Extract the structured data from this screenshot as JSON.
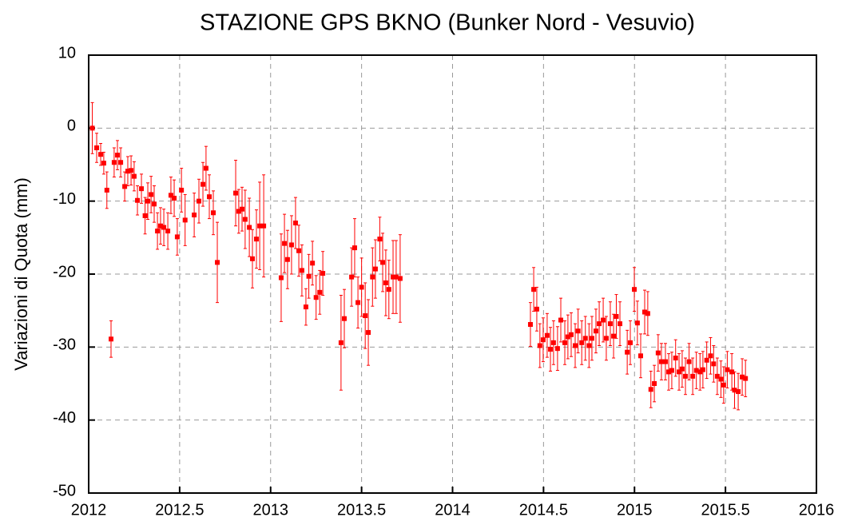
{
  "chart_data": {
    "type": "errorbar",
    "title": "STAZIONE GPS BKNO (Bunker Nord - Vesuvio)",
    "y_label": "Variazioni di Quota (mm)",
    "color": "#ff0000",
    "grid": true,
    "xlim": [
      2012,
      2016
    ],
    "xticks": [
      2012,
      2012.5,
      2013,
      2013.5,
      2014,
      2014.5,
      2015,
      2015.5,
      2016
    ],
    "ylim": [
      -50,
      10
    ],
    "yticks": [
      10,
      0,
      -10,
      -20,
      -30,
      -40,
      -50
    ],
    "x": [
      2012.02,
      2012.044,
      2012.066,
      2012.083,
      2012.1,
      2012.123,
      2012.14,
      2012.158,
      2012.176,
      2012.198,
      2012.215,
      2012.233,
      2012.25,
      2012.268,
      2012.29,
      2012.31,
      2012.325,
      2012.343,
      2012.36,
      2012.378,
      2012.395,
      2012.413,
      2012.435,
      2012.452,
      2012.47,
      2012.487,
      2012.51,
      2012.53,
      2012.58,
      2012.606,
      2012.628,
      2012.645,
      2012.663,
      2012.685,
      2012.707,
      2012.808,
      2012.825,
      2012.843,
      2012.86,
      2012.883,
      2012.9,
      2012.922,
      2012.94,
      2012.962,
      2013.058,
      2013.076,
      2013.093,
      2013.115,
      2013.137,
      2013.155,
      2013.172,
      2013.194,
      2013.21,
      2013.23,
      2013.25,
      2013.27,
      2013.287,
      2013.387,
      2013.405,
      2013.445,
      2013.462,
      2013.48,
      2013.5,
      2013.52,
      2013.537,
      2013.56,
      2013.576,
      2013.6,
      2013.616,
      2013.633,
      2013.65,
      2013.673,
      2013.69,
      2013.712,
      2014.428,
      2014.446,
      2014.463,
      2014.48,
      2014.498,
      2014.52,
      2014.538,
      2014.555,
      2014.577,
      2014.595,
      2014.617,
      2014.634,
      2014.652,
      2014.674,
      2014.69,
      2014.71,
      2014.73,
      2014.75,
      2014.766,
      2014.788,
      2014.806,
      2014.828,
      2014.845,
      2014.867,
      2014.885,
      2014.9,
      2014.92,
      2014.96,
      2014.977,
      2014.999,
      2015.016,
      2015.034,
      2015.056,
      2015.073,
      2015.09,
      2015.109,
      2015.13,
      2015.148,
      2015.17,
      2015.188,
      2015.205,
      2015.226,
      2015.245,
      2015.262,
      2015.28,
      2015.3,
      2015.32,
      2015.34,
      2015.36,
      2015.376,
      2015.397,
      2015.418,
      2015.435,
      2015.455,
      2015.475,
      2015.49,
      2015.51,
      2015.535,
      2015.55,
      2015.57,
      2015.592,
      2015.61
    ],
    "values": [
      0,
      -2.7,
      -3.6,
      -4.8,
      -8.5,
      -28.9,
      -4.7,
      -3.7,
      -4.7,
      -8,
      -5.9,
      -5.8,
      -6.6,
      -9.9,
      -8.3,
      -12,
      -10,
      -9.1,
      -10.4,
      -14.1,
      -13.4,
      -13.6,
      -14.1,
      -9.2,
      -9.6,
      -14.9,
      -8.5,
      -12.6,
      -11.9,
      -10,
      -7.7,
      -5.5,
      -9.4,
      -11.6,
      -18.4,
      -8.9,
      -11.4,
      -11.1,
      -12.5,
      -13.6,
      -17.9,
      -15.2,
      -13.4,
      -13.4,
      -20.5,
      -15.8,
      -18,
      -16,
      -13,
      -16.8,
      -19.5,
      -24.5,
      -20.3,
      -18.5,
      -23.2,
      -22.5,
      -19.9,
      -29.4,
      -26.1,
      -20.4,
      -16.4,
      -23.9,
      -21.8,
      -25.7,
      -28,
      -20.4,
      -19.3,
      -15.2,
      -18.4,
      -21.2,
      -22.1,
      -20.4,
      -20.4,
      -20.6,
      -26.9,
      -22.1,
      -24.8,
      -29.8,
      -29,
      -28.4,
      -30.3,
      -29.4,
      -30.2,
      -26.3,
      -29.4,
      -28.6,
      -28.3,
      -29.8,
      -27.8,
      -29.4,
      -28.8,
      -29.8,
      -28.8,
      -27.8,
      -26.8,
      -26.3,
      -28.8,
      -26.8,
      -28.5,
      -25.8,
      -26.8,
      -30.7,
      -29.4,
      -22.1,
      -26.7,
      -31.2,
      -25.2,
      -25.4,
      -35.8,
      -35,
      -30.8,
      -32,
      -32,
      -33.4,
      -33.2,
      -31.5,
      -33.4,
      -33,
      -34,
      -32,
      -34,
      -33.2,
      -33.4,
      -33.1,
      -31.8,
      -31.2,
      -32.3,
      -34,
      -34.4,
      -35.2,
      -33.1,
      -33.4,
      -35.9,
      -36.1,
      -34.1,
      -34.3
    ],
    "errors": [
      3.5,
      2,
      1.5,
      1.5,
      2.5,
      2.5,
      2,
      2,
      2,
      2,
      2,
      2,
      2,
      2,
      2,
      2.5,
      2.5,
      2.5,
      2.5,
      2.5,
      2.5,
      2.5,
      2.5,
      2.5,
      2.5,
      2.5,
      3,
      3.5,
      3,
      3,
      3,
      3,
      3,
      3,
      5.5,
      4.5,
      3,
      3,
      4,
      4,
      4,
      4,
      6,
      7,
      6,
      4,
      4,
      4,
      3.5,
      3.5,
      3.5,
      2.5,
      3,
      3,
      3,
      3,
      3,
      6.5,
      4,
      4,
      4,
      3.5,
      4,
      4.5,
      4.5,
      4,
      4,
      3,
      4,
      4.5,
      4,
      5,
      5,
      6,
      3,
      3,
      3,
      3,
      3,
      3,
      3,
      3,
      3,
      3,
      3,
      3,
      3,
      3,
      3,
      3,
      3,
      3,
      3,
      3,
      3,
      3,
      3,
      3,
      3,
      3,
      3,
      3,
      3,
      3,
      3,
      3,
      3,
      3,
      2.5,
      2.5,
      2.5,
      2.5,
      2.5,
      2.5,
      2.5,
      2.5,
      2.5,
      2.5,
      2.5,
      2.5,
      2.5,
      2.5,
      2.5,
      2.5,
      2.5,
      2.5,
      2.5,
      2.5,
      2.5,
      2.5,
      2.5,
      2.5,
      2.5,
      2.5,
      2.5,
      2.5
    ]
  }
}
